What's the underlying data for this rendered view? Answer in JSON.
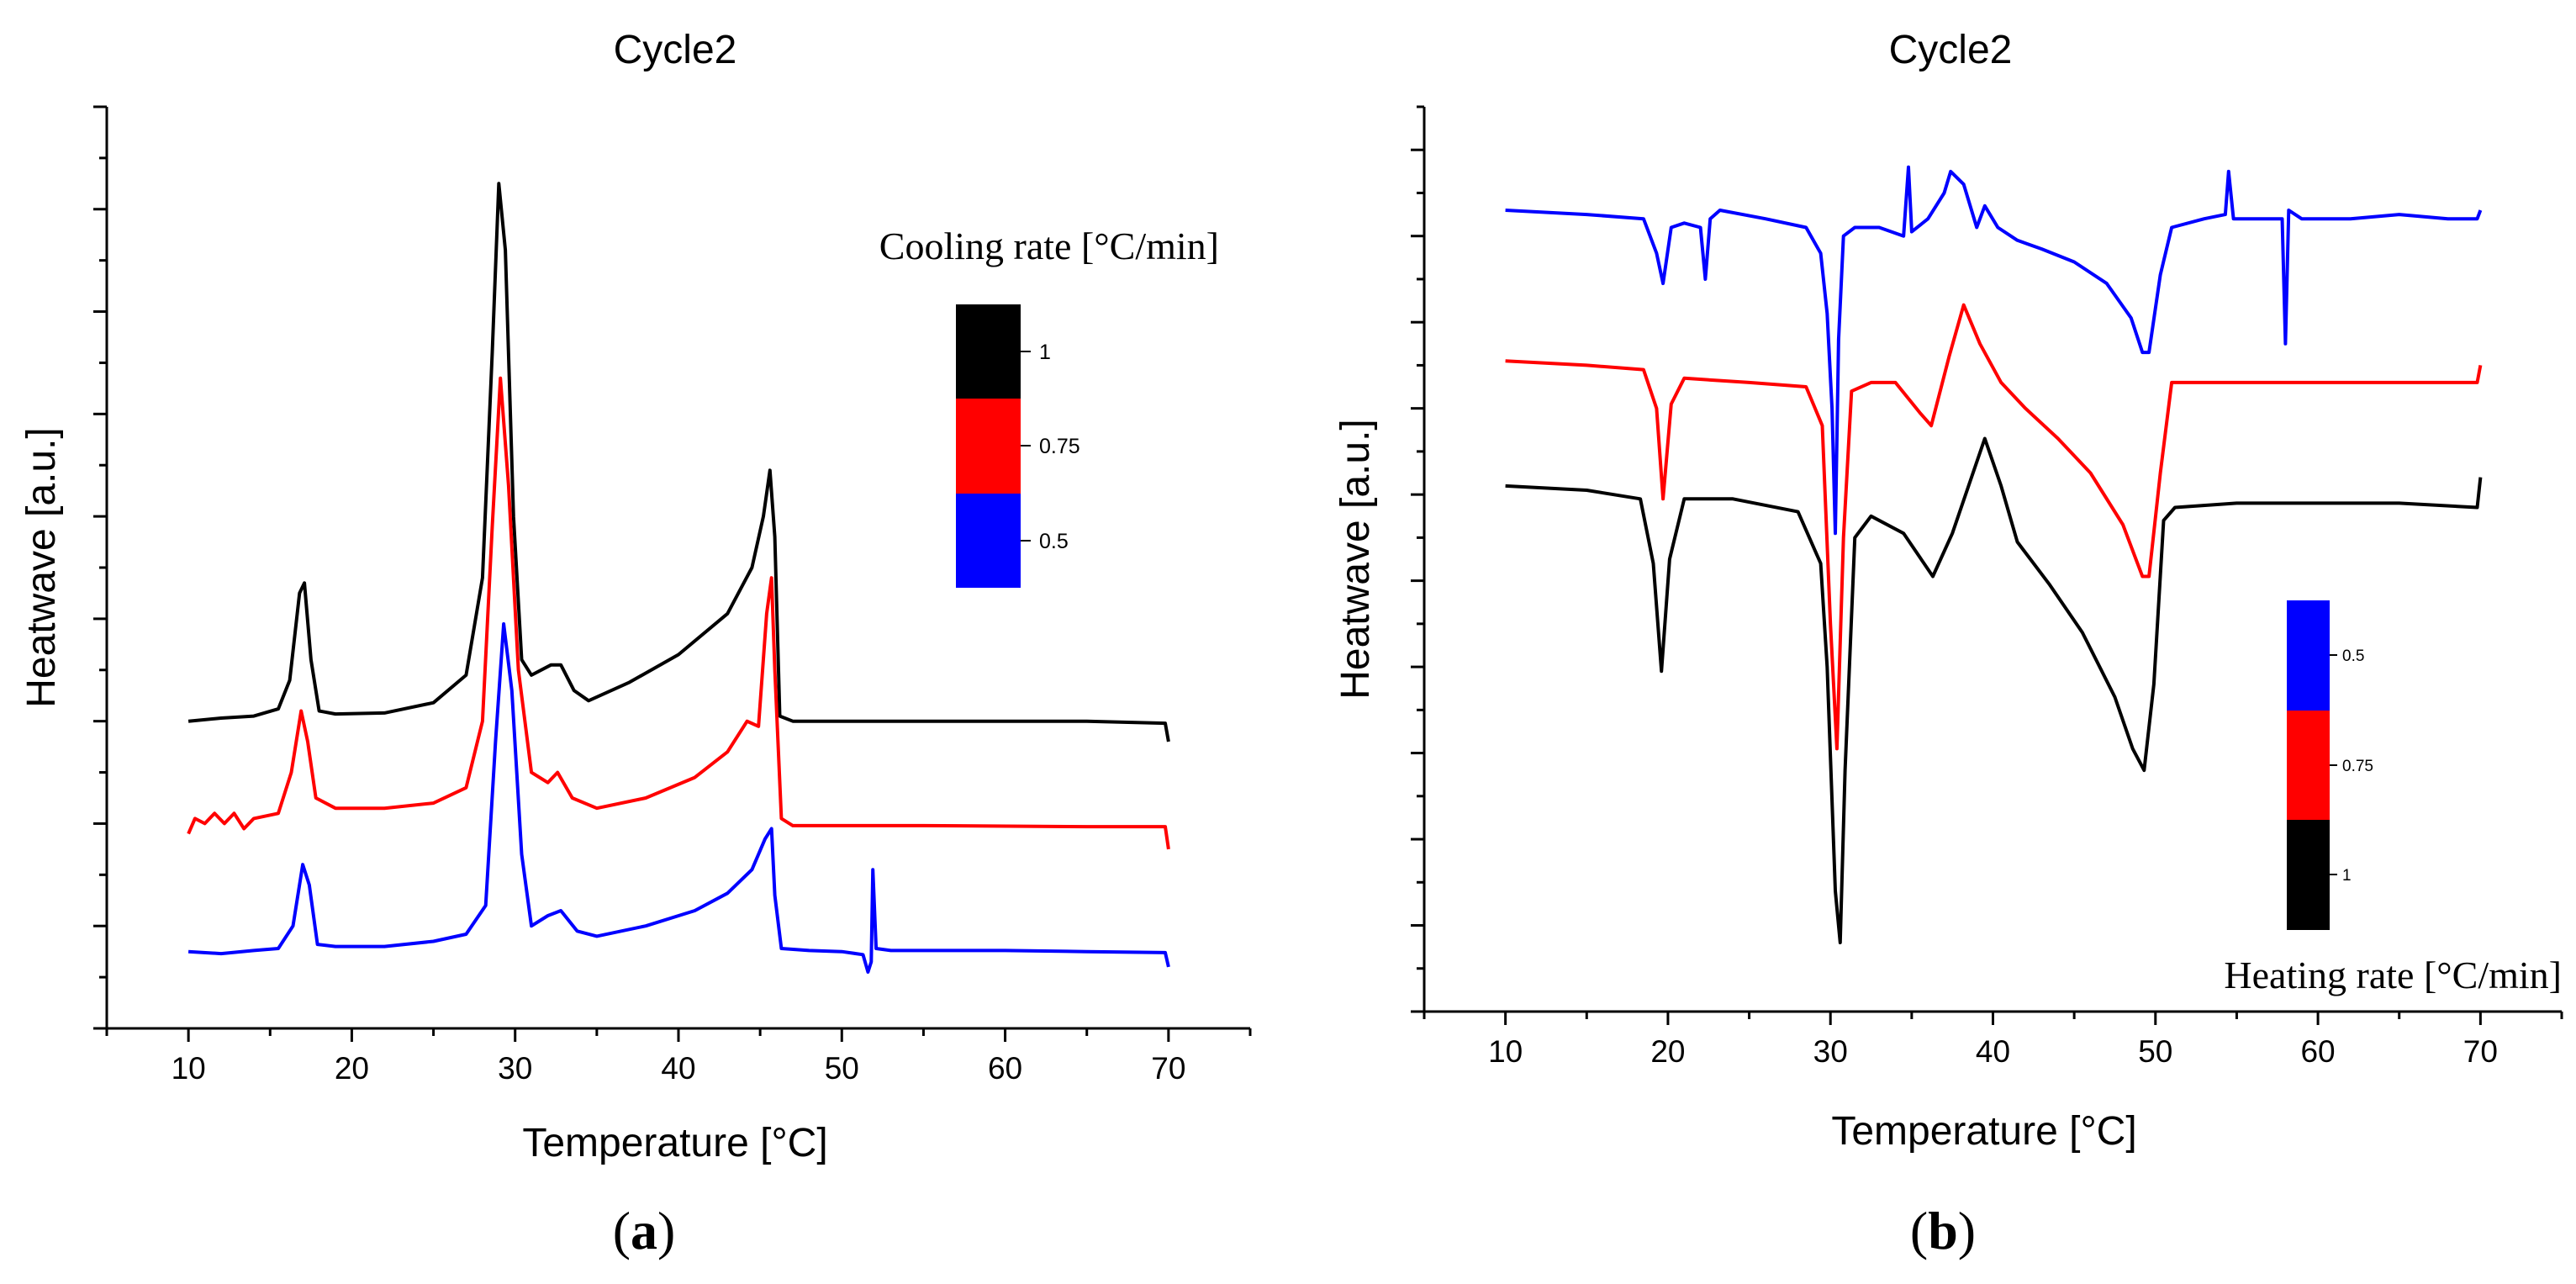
{
  "chart_data": [
    {
      "panel_label": "a",
      "type": "line",
      "title": "Cycle2",
      "xlabel": "Temperature [°C]",
      "ylabel": "Heatwave [a.u.]",
      "xlim": [
        5,
        75
      ],
      "xticks": [
        10,
        20,
        30,
        40,
        50,
        60,
        70
      ],
      "ylim": [
        0,
        9
      ],
      "grid": false,
      "legend": {
        "title": "Cooling rate [°C/min]",
        "placement": "right",
        "entries": [
          {
            "label": "1",
            "color": "#000000"
          },
          {
            "label": "0.75",
            "color": "#ff0000"
          },
          {
            "label": "0.5",
            "color": "#0000ff"
          }
        ]
      },
      "series": [
        {
          "name": "1",
          "color": "#000000",
          "points": [
            [
              10,
              3.0
            ],
            [
              12,
              3.03
            ],
            [
              14,
              3.05
            ],
            [
              15.5,
              3.12
            ],
            [
              16.2,
              3.4
            ],
            [
              16.8,
              4.25
            ],
            [
              17.1,
              4.35
            ],
            [
              17.5,
              3.6
            ],
            [
              18.0,
              3.1
            ],
            [
              19,
              3.07
            ],
            [
              22,
              3.08
            ],
            [
              25,
              3.18
            ],
            [
              27,
              3.45
            ],
            [
              28.0,
              4.4
            ],
            [
              28.6,
              6.6
            ],
            [
              29.0,
              8.25
            ],
            [
              29.4,
              7.6
            ],
            [
              29.9,
              5.0
            ],
            [
              30.4,
              3.6
            ],
            [
              31.0,
              3.45
            ],
            [
              32.2,
              3.55
            ],
            [
              32.8,
              3.55
            ],
            [
              33.6,
              3.3
            ],
            [
              34.5,
              3.2
            ],
            [
              37,
              3.38
            ],
            [
              40,
              3.65
            ],
            [
              43,
              4.05
            ],
            [
              44.5,
              4.5
            ],
            [
              45.2,
              5.0
            ],
            [
              45.6,
              5.45
            ],
            [
              45.9,
              4.8
            ],
            [
              46.2,
              3.05
            ],
            [
              47,
              3.0
            ],
            [
              55,
              3.0
            ],
            [
              65,
              3.0
            ],
            [
              69.8,
              2.98
            ],
            [
              70,
              2.8
            ]
          ]
        },
        {
          "name": "0.75",
          "color": "#ff0000",
          "points": [
            [
              10,
              1.9
            ],
            [
              10.4,
              2.05
            ],
            [
              11,
              2.0
            ],
            [
              11.6,
              2.1
            ],
            [
              12.2,
              2.0
            ],
            [
              12.8,
              2.1
            ],
            [
              13.4,
              1.95
            ],
            [
              14,
              2.05
            ],
            [
              15.5,
              2.1
            ],
            [
              16.3,
              2.5
            ],
            [
              16.9,
              3.1
            ],
            [
              17.3,
              2.8
            ],
            [
              17.8,
              2.25
            ],
            [
              19,
              2.15
            ],
            [
              22,
              2.15
            ],
            [
              25,
              2.2
            ],
            [
              27,
              2.35
            ],
            [
              28.0,
              3.0
            ],
            [
              28.6,
              4.9
            ],
            [
              29.1,
              6.35
            ],
            [
              29.6,
              5.3
            ],
            [
              30.2,
              3.5
            ],
            [
              31.0,
              2.5
            ],
            [
              32.0,
              2.4
            ],
            [
              32.6,
              2.5
            ],
            [
              33.5,
              2.25
            ],
            [
              35,
              2.15
            ],
            [
              38,
              2.25
            ],
            [
              41,
              2.45
            ],
            [
              43,
              2.7
            ],
            [
              44.2,
              3.0
            ],
            [
              44.9,
              2.95
            ],
            [
              45.4,
              4.05
            ],
            [
              45.7,
              4.4
            ],
            [
              45.9,
              3.5
            ],
            [
              46.3,
              2.05
            ],
            [
              47,
              1.98
            ],
            [
              55,
              1.98
            ],
            [
              65,
              1.97
            ],
            [
              69.8,
              1.97
            ],
            [
              70,
              1.75
            ]
          ]
        },
        {
          "name": "0.5",
          "color": "#0000ff",
          "points": [
            [
              10,
              0.75
            ],
            [
              12,
              0.73
            ],
            [
              14,
              0.76
            ],
            [
              15.5,
              0.78
            ],
            [
              16.4,
              1.0
            ],
            [
              17.0,
              1.6
            ],
            [
              17.4,
              1.4
            ],
            [
              17.9,
              0.82
            ],
            [
              19,
              0.8
            ],
            [
              22,
              0.8
            ],
            [
              25,
              0.85
            ],
            [
              27,
              0.92
            ],
            [
              28.2,
              1.2
            ],
            [
              28.8,
              2.8
            ],
            [
              29.3,
              3.95
            ],
            [
              29.8,
              3.3
            ],
            [
              30.4,
              1.7
            ],
            [
              31.0,
              1.0
            ],
            [
              32.0,
              1.1
            ],
            [
              32.8,
              1.15
            ],
            [
              33.8,
              0.95
            ],
            [
              35,
              0.9
            ],
            [
              38,
              1.0
            ],
            [
              41,
              1.15
            ],
            [
              43,
              1.32
            ],
            [
              44.5,
              1.55
            ],
            [
              45.3,
              1.85
            ],
            [
              45.7,
              1.95
            ],
            [
              45.9,
              1.3
            ],
            [
              46.3,
              0.78
            ],
            [
              48,
              0.76
            ],
            [
              50,
              0.75
            ],
            [
              51.3,
              0.72
            ],
            [
              51.6,
              0.55
            ],
            [
              51.8,
              0.65
            ],
            [
              51.9,
              1.55
            ],
            [
              52.1,
              0.78
            ],
            [
              53,
              0.76
            ],
            [
              60,
              0.76
            ],
            [
              65,
              0.75
            ],
            [
              69.8,
              0.74
            ],
            [
              70,
              0.6
            ]
          ]
        }
      ]
    },
    {
      "panel_label": "b",
      "type": "line",
      "title": "Cycle2",
      "xlabel": "Temperature [°C]",
      "ylabel": "Heatwave [a.u.]",
      "xlim": [
        5,
        75
      ],
      "xticks": [
        10,
        20,
        30,
        40,
        50,
        60,
        70
      ],
      "ylim": [
        0,
        10.5
      ],
      "grid": false,
      "legend": {
        "title": "Heating rate [°C/min]",
        "placement": "bottom-right",
        "entries": [
          {
            "label": "0.5",
            "color": "#0000ff"
          },
          {
            "label": "0.75",
            "color": "#ff0000"
          },
          {
            "label": "1",
            "color": "#000000"
          }
        ]
      },
      "series": [
        {
          "name": "0.5",
          "color": "#0000ff",
          "points": [
            [
              10,
              9.3
            ],
            [
              15,
              9.25
            ],
            [
              18.5,
              9.2
            ],
            [
              19.3,
              8.8
            ],
            [
              19.7,
              8.45
            ],
            [
              20.2,
              9.1
            ],
            [
              21,
              9.15
            ],
            [
              22.0,
              9.1
            ],
            [
              22.3,
              8.5
            ],
            [
              22.6,
              9.2
            ],
            [
              23.2,
              9.3
            ],
            [
              26,
              9.2
            ],
            [
              28.5,
              9.1
            ],
            [
              29.4,
              8.8
            ],
            [
              29.8,
              8.1
            ],
            [
              30.1,
              7.0
            ],
            [
              30.3,
              5.55
            ],
            [
              30.5,
              7.8
            ],
            [
              30.8,
              9.0
            ],
            [
              31.5,
              9.1
            ],
            [
              33,
              9.1
            ],
            [
              34.5,
              9.0
            ],
            [
              34.8,
              9.8
            ],
            [
              35.0,
              9.05
            ],
            [
              36,
              9.2
            ],
            [
              37.0,
              9.5
            ],
            [
              37.4,
              9.75
            ],
            [
              38.2,
              9.6
            ],
            [
              39.0,
              9.1
            ],
            [
              39.5,
              9.35
            ],
            [
              40.3,
              9.1
            ],
            [
              41.5,
              8.95
            ],
            [
              43,
              8.85
            ],
            [
              45,
              8.7
            ],
            [
              47,
              8.45
            ],
            [
              48.5,
              8.05
            ],
            [
              49.2,
              7.65
            ],
            [
              49.6,
              7.65
            ],
            [
              50.3,
              8.55
            ],
            [
              51,
              9.1
            ],
            [
              53,
              9.2
            ],
            [
              54.3,
              9.25
            ],
            [
              54.5,
              9.75
            ],
            [
              54.8,
              9.2
            ],
            [
              56,
              9.2
            ],
            [
              57.8,
              9.2
            ],
            [
              58.0,
              7.75
            ],
            [
              58.2,
              9.3
            ],
            [
              59,
              9.2
            ],
            [
              62,
              9.2
            ],
            [
              65,
              9.25
            ],
            [
              68,
              9.2
            ],
            [
              69.8,
              9.2
            ],
            [
              70,
              9.3
            ]
          ]
        },
        {
          "name": "0.75",
          "color": "#ff0000",
          "points": [
            [
              10,
              7.55
            ],
            [
              15,
              7.5
            ],
            [
              18.5,
              7.45
            ],
            [
              19.3,
              7.0
            ],
            [
              19.7,
              5.95
            ],
            [
              20.2,
              7.05
            ],
            [
              21,
              7.35
            ],
            [
              25,
              7.3
            ],
            [
              28.5,
              7.25
            ],
            [
              29.5,
              6.8
            ],
            [
              30.0,
              4.5
            ],
            [
              30.4,
              3.05
            ],
            [
              30.8,
              5.5
            ],
            [
              31.3,
              7.2
            ],
            [
              32.5,
              7.3
            ],
            [
              34,
              7.3
            ],
            [
              35.5,
              6.95
            ],
            [
              36.2,
              6.8
            ],
            [
              37.3,
              7.6
            ],
            [
              38.2,
              8.2
            ],
            [
              39.2,
              7.75
            ],
            [
              40.5,
              7.3
            ],
            [
              42,
              7.0
            ],
            [
              44,
              6.65
            ],
            [
              46,
              6.25
            ],
            [
              48,
              5.65
            ],
            [
              49.2,
              5.05
            ],
            [
              49.6,
              5.05
            ],
            [
              50.3,
              6.25
            ],
            [
              51,
              7.3
            ],
            [
              55,
              7.3
            ],
            [
              60,
              7.3
            ],
            [
              65,
              7.3
            ],
            [
              69.8,
              7.3
            ],
            [
              70,
              7.5
            ]
          ]
        },
        {
          "name": "1",
          "color": "#000000",
          "points": [
            [
              10,
              6.1
            ],
            [
              15,
              6.05
            ],
            [
              18.3,
              5.95
            ],
            [
              19.1,
              5.2
            ],
            [
              19.6,
              3.95
            ],
            [
              20.1,
              5.25
            ],
            [
              21,
              5.95
            ],
            [
              24,
              5.95
            ],
            [
              28,
              5.8
            ],
            [
              29.4,
              5.2
            ],
            [
              29.8,
              4.0
            ],
            [
              30.3,
              1.4
            ],
            [
              30.6,
              0.8
            ],
            [
              30.9,
              2.8
            ],
            [
              31.5,
              5.5
            ],
            [
              32.5,
              5.75
            ],
            [
              34.5,
              5.55
            ],
            [
              36.3,
              5.05
            ],
            [
              37.5,
              5.55
            ],
            [
              38.5,
              6.1
            ],
            [
              39.5,
              6.65
            ],
            [
              40.5,
              6.1
            ],
            [
              41.5,
              5.45
            ],
            [
              43.5,
              4.95
            ],
            [
              45.5,
              4.4
            ],
            [
              47.5,
              3.65
            ],
            [
              48.6,
              3.05
            ],
            [
              49.3,
              2.8
            ],
            [
              49.9,
              3.8
            ],
            [
              50.5,
              5.7
            ],
            [
              51.2,
              5.85
            ],
            [
              55,
              5.9
            ],
            [
              60,
              5.9
            ],
            [
              65,
              5.9
            ],
            [
              69.8,
              5.85
            ],
            [
              70,
              6.2
            ]
          ]
        }
      ]
    }
  ]
}
